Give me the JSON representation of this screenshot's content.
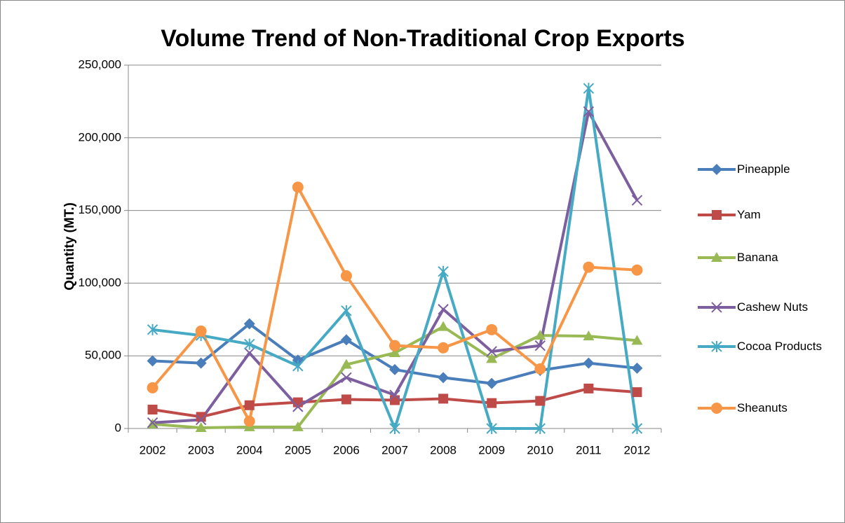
{
  "chart_data": {
    "type": "line",
    "title": "Volume Trend of Non-Traditional Crop Exports",
    "y_label": "Quantity (MT.)",
    "categories": [
      "2002",
      "2003",
      "2004",
      "2005",
      "2006",
      "2007",
      "2008",
      "2009",
      "2010",
      "2011",
      "2012"
    ],
    "series": [
      {
        "name": "Pineapple",
        "color": "#4a7ebb",
        "values": [
          46500,
          45000,
          72000,
          47000,
          61000,
          40500,
          35000,
          31000,
          40000,
          45000,
          41500
        ]
      },
      {
        "name": "Yam",
        "color": "#be4b48",
        "values": [
          13000,
          8000,
          16000,
          18000,
          20000,
          19500,
          20500,
          17500,
          19000,
          27500,
          25000
        ]
      },
      {
        "name": "Banana",
        "color": "#98b954",
        "values": [
          3000,
          500,
          1000,
          1000,
          44000,
          52000,
          70000,
          48000,
          64000,
          63500,
          60500
        ]
      },
      {
        "name": "Cashew Nuts",
        "color": "#7d5fa0",
        "values": [
          4000,
          6000,
          52000,
          15000,
          35000,
          23000,
          82000,
          53000,
          57000,
          218000,
          157000
        ]
      },
      {
        "name": "Cocoa Products",
        "color": "#46aac5",
        "values": [
          68000,
          64000,
          58000,
          43000,
          81000,
          0,
          108000,
          0,
          0,
          234000,
          0
        ]
      },
      {
        "name": "Sheanuts",
        "color": "#f79646",
        "values": [
          28000,
          67000,
          5000,
          166000,
          105000,
          57000,
          55500,
          68000,
          41000,
          111000,
          109000
        ]
      }
    ],
    "ylim": [
      0,
      250000
    ],
    "yticks": [
      0,
      {
        "value": 50000,
        "label": "50,000"
      },
      {
        "value": 100000,
        "label": "100,000"
      },
      {
        "value": 150000,
        "label": "150,000"
      },
      {
        "value": 200000,
        "label": "200,000"
      },
      {
        "value": 250000,
        "label": "250,000"
      }
    ],
    "grid": true,
    "legend": "right"
  }
}
